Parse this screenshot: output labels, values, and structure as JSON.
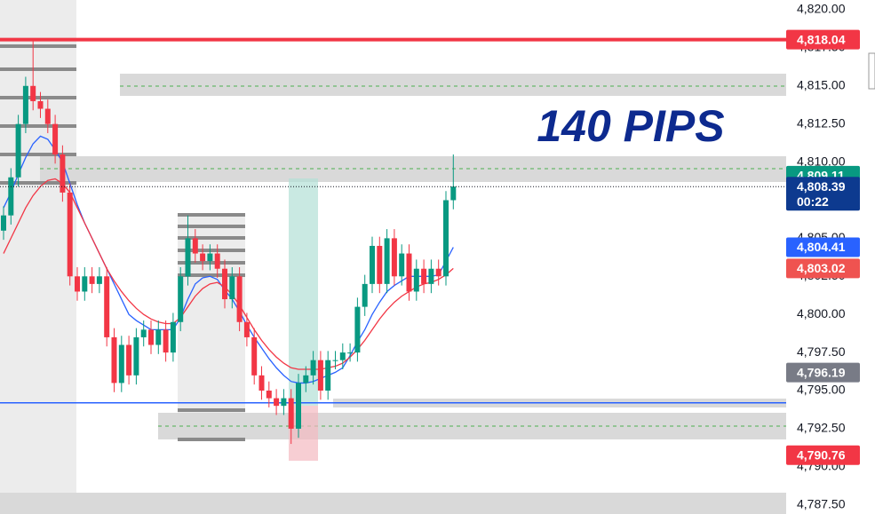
{
  "chart_data": {
    "type": "candlestick",
    "annotation": "140 PIPS",
    "up_color": "#089981",
    "down_color": "#f23645",
    "open": [
      4805.5,
      4806.5,
      4809,
      4812.5,
      4815,
      4814,
      4813.5,
      4812.5,
      4810.5,
      4808,
      4802.5,
      4801.5,
      4802.5,
      4802,
      4802.5,
      4798.5,
      4795.5,
      4798,
      4796,
      4798.5,
      4799,
      4798,
      4799,
      4797.5,
      4799.5,
      4802.5,
      4805,
      4804,
      4803.5,
      4804,
      4803,
      4801,
      4802.5,
      4799.5,
      4798.5,
      4796,
      4795,
      4794.5,
      4794,
      4794.5,
      4792.5,
      4795.5,
      4796,
      4797,
      4795,
      4797,
      4797,
      4797.5,
      4797.5,
      4800.5,
      4802,
      4804.5,
      4802,
      4805,
      4802.5,
      4804,
      4801.5,
      4803,
      4802,
      4803,
      4802.5,
      4807.5
    ],
    "high": [
      4807.1,
      4809.6,
      4813.1,
      4815.6,
      4818,
      4814.6,
      4814.1,
      4813.1,
      4811.1,
      4808.6,
      4803.1,
      4803.1,
      4803.1,
      4803.1,
      4803.1,
      4799.1,
      4798.6,
      4798.6,
      4799.1,
      4799.6,
      4799.6,
      4799.6,
      4799.6,
      4800.1,
      4803.1,
      4806.5,
      4805.6,
      4804.6,
      4804.6,
      4804.6,
      4803.6,
      4803.1,
      4803.1,
      4800.1,
      4799.1,
      4796.6,
      4795.6,
      4795.1,
      4795.1,
      4795.1,
      4796.1,
      4796.6,
      4797.6,
      4797.6,
      4797.6,
      4797.6,
      4798.1,
      4798.1,
      4801.1,
      4802.6,
      4805.1,
      4805.1,
      4805.6,
      4805.6,
      4804.6,
      4804.6,
      4803.6,
      4803.6,
      4803.6,
      4803.6,
      4808.1,
      4810.5
    ],
    "low": [
      4804.9,
      4805.9,
      4808.4,
      4811.9,
      4813.4,
      4812.9,
      4811.9,
      4809.9,
      4807.4,
      4801.9,
      4800.9,
      4800.9,
      4801.4,
      4801.4,
      4797.9,
      4794.9,
      4794.9,
      4795.4,
      4795.4,
      4797.9,
      4797.4,
      4797.4,
      4796.9,
      4796.9,
      4798.9,
      4801.9,
      4803.4,
      4802.9,
      4802.9,
      4802.4,
      4800.4,
      4800.4,
      4798.9,
      4797.9,
      4795.4,
      4794.4,
      4793.9,
      4793.4,
      4793.4,
      4791.5,
      4791.9,
      4794.9,
      4795.4,
      4794.4,
      4794.4,
      4796.4,
      4796.4,
      4796.9,
      4796.9,
      4799.9,
      4801.4,
      4801.4,
      4801.4,
      4801.9,
      4801.9,
      4800.9,
      4800.9,
      4801.4,
      4801.4,
      4801.9,
      4801.9,
      4806.9
    ],
    "close": [
      4806.5,
      4809,
      4812.5,
      4815,
      4814,
      4813.5,
      4812.5,
      4810.5,
      4808,
      4802.5,
      4801.5,
      4802.5,
      4802,
      4802.5,
      4798.5,
      4795.5,
      4798,
      4796,
      4798.5,
      4799,
      4798,
      4799,
      4797.5,
      4799.5,
      4802.5,
      4805,
      4804,
      4803.5,
      4804,
      4803,
      4801,
      4802.5,
      4799.5,
      4798.5,
      4796,
      4795,
      4794.5,
      4794,
      4794.5,
      4792.5,
      4795.5,
      4796,
      4797,
      4795,
      4797,
      4797,
      4797.5,
      4797.5,
      4800.5,
      4802,
      4804.5,
      4802,
      4805,
      4802.5,
      4804,
      4801.5,
      4803,
      4802,
      4803,
      4802.5,
      4807.5,
      4808.39
    ],
    "moving_averages": [
      {
        "color": "#2962ff",
        "values": [
          4807,
          4808,
          4809.2,
          4810.3,
          4811.2,
          4811.7,
          4811.5,
          4810.8,
          4810,
          4808.6,
          4807.2,
          4806,
          4805,
          4804,
          4803,
          4802,
          4801,
          4800,
          4799.6,
          4799.3,
          4799,
          4799,
          4799,
          4799,
          4799.8,
          4801,
          4802,
          4802.4,
          4802.5,
          4802.3,
          4801.6,
          4801,
          4800.2,
          4799.3,
          4798.5,
          4797.8,
          4797.1,
          4796.5,
          4796,
          4795.6,
          4795.5,
          4795.5,
          4795.6,
          4795.8,
          4796,
          4796.2,
          4796.5,
          4797.3,
          4798.2,
          4799,
          4800,
          4800.8,
          4801.5,
          4801.9,
          4802.2,
          4802.5,
          4802.5,
          4802.5,
          4802.5,
          4802.6,
          4803.5,
          4804.41
        ]
      },
      {
        "color": "#f23645",
        "values": [
          4804,
          4805,
          4806,
          4807,
          4807.8,
          4808.4,
          4808.8,
          4808.9,
          4808.6,
          4808,
          4807,
          4806,
          4805,
          4804,
          4803,
          4802.2,
          4801.5,
          4800.9,
          4800.4,
          4800,
          4799.7,
          4799.5,
          4799.4,
          4799.4,
          4799.8,
          4800.5,
          4801.2,
          4801.7,
          4802,
          4802.1,
          4801.8,
          4801.3,
          4800.6,
          4799.8,
          4799,
          4798.3,
          4797.7,
          4797.2,
          4796.8,
          4796.5,
          4796.4,
          4796.4,
          4796.4,
          4796.4,
          4796.5,
          4796.6,
          4796.8,
          4797.2,
          4797.7,
          4798.3,
          4799,
          4799.7,
          4800.3,
          4800.8,
          4801.2,
          4801.5,
          4801.8,
          4802,
          4802.1,
          4802.3,
          4802.6,
          4803.02
        ]
      }
    ],
    "ylim": [
      4786.9,
      4820.64
    ],
    "yticks": [
      {
        "value": 4820,
        "label": "4,820.00"
      },
      {
        "value": 4817.5,
        "label": "4,817.50"
      },
      {
        "value": 4815,
        "label": "4,815.00"
      },
      {
        "value": 4812.5,
        "label": "4,812.50"
      },
      {
        "value": 4810,
        "label": "4,810.00"
      },
      {
        "value": 4807.5,
        "label": "4,807.50"
      },
      {
        "value": 4805,
        "label": "4,805.00"
      },
      {
        "value": 4802.5,
        "label": "4,802.50"
      },
      {
        "value": 4800,
        "label": "4,800.00"
      },
      {
        "value": 4797.5,
        "label": "4,797.50"
      },
      {
        "value": 4795,
        "label": "4,795.00"
      },
      {
        "value": 4792.5,
        "label": "4,792.50"
      },
      {
        "value": 4790,
        "label": "4,790.00"
      },
      {
        "value": 4787.5,
        "label": "4,787.50"
      }
    ],
    "price_tags": [
      {
        "value": 4818.04,
        "label": "4,818.04",
        "color": "#f23645"
      },
      {
        "value": 4809.11,
        "label": "4,809.11",
        "color": "#089981"
      },
      {
        "value": 4804.41,
        "label": "4,804.41",
        "color": "#2962ff"
      },
      {
        "value": 4803.02,
        "label": "4,803.02",
        "color": "#ef5350"
      },
      {
        "value": 4796.19,
        "label": "4,796.19",
        "color": "#787b86"
      },
      {
        "value": 4790.76,
        "label": "4,790.76",
        "color": "#f23645"
      },
      {
        "value": 4808.39,
        "label": "4,808.39",
        "color": "#0d3a8f",
        "countdown": "00:22"
      }
    ],
    "levels": [
      {
        "value": 4818.04,
        "color": "#f23645"
      },
      {
        "value": 4794.2,
        "color": "#2962ff"
      }
    ]
  }
}
